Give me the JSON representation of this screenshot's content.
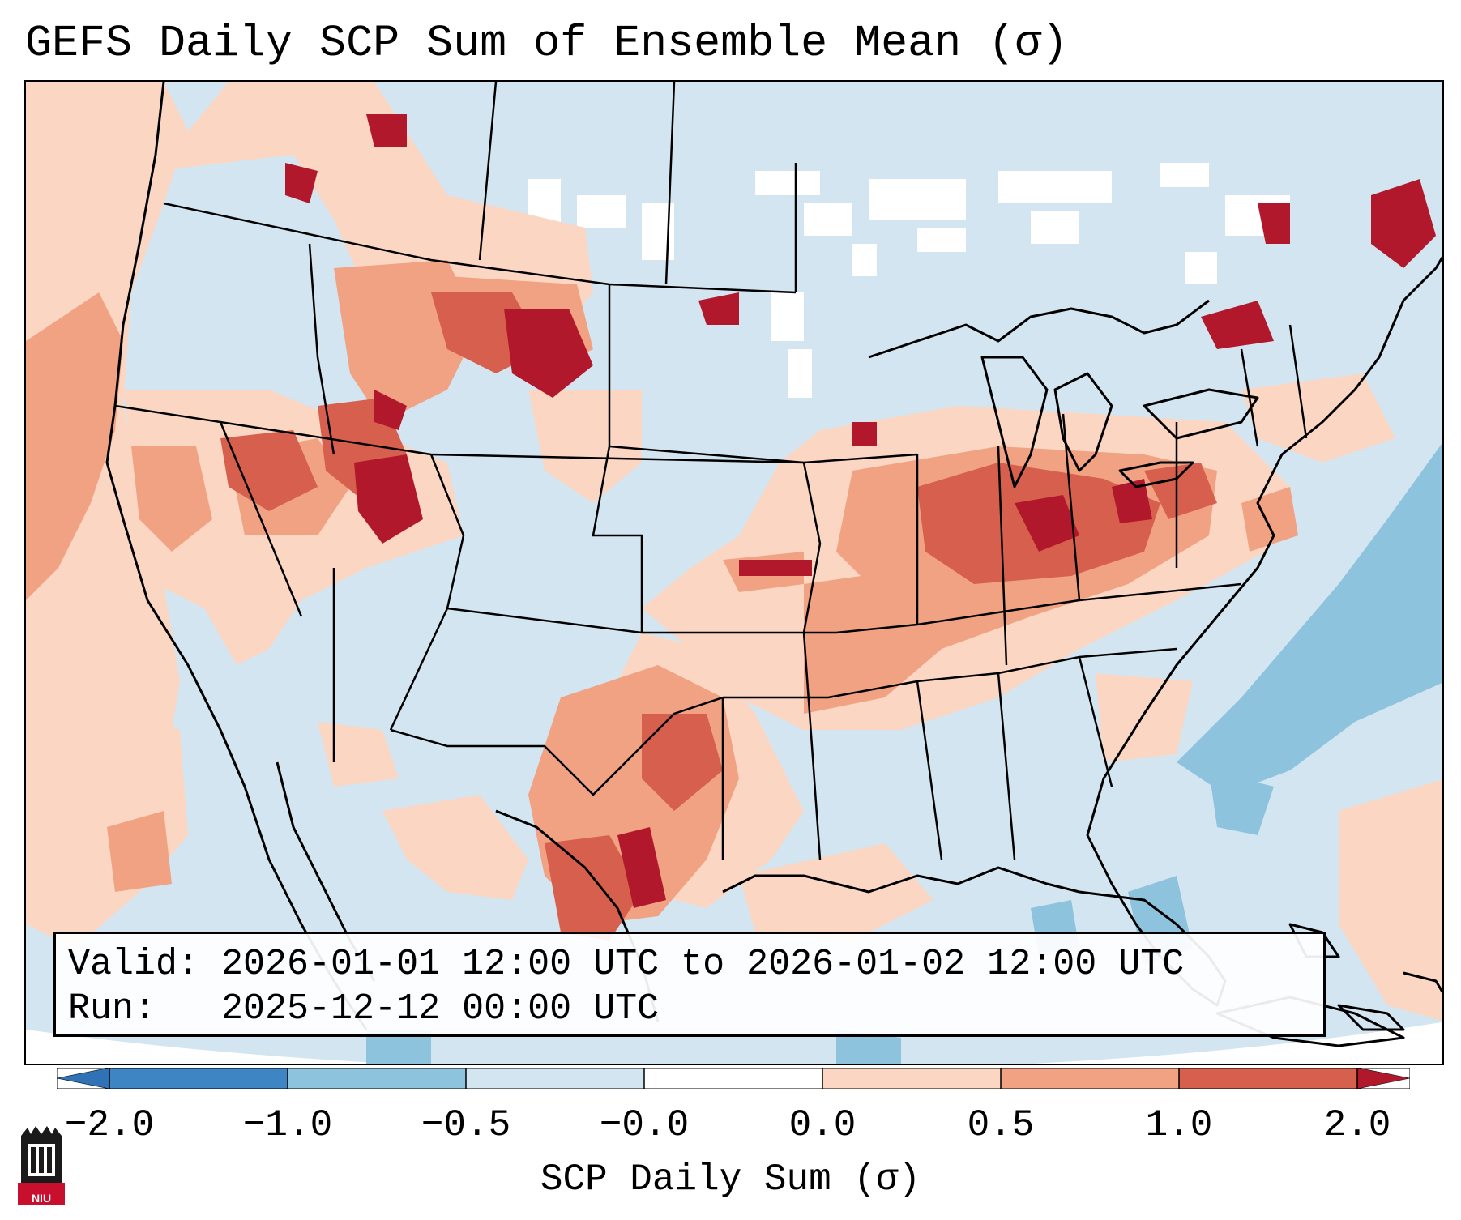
{
  "title": "GEFS Daily SCP Sum of Ensemble Mean (σ)",
  "info": {
    "valid_line": "Valid: 2026-01-01 12:00 UTC to 2026-01-02 12:00 UTC",
    "run_line": "Run:   2025-12-12 00:00 UTC"
  },
  "colorbar": {
    "label": "SCP Daily Sum (σ)",
    "ticks": [
      "−2.0",
      "−1.0",
      "−0.5",
      "−0.0",
      "0.0",
      "0.5",
      "1.0",
      "2.0"
    ],
    "bins": [
      {
        "range": "< -2.0",
        "color": "#2f72b5"
      },
      {
        "range": "-2.0 to -1.0",
        "color": "#3e85c4"
      },
      {
        "range": "-1.0 to -0.5",
        "color": "#8ec3de"
      },
      {
        "range": "-0.5 to -0.0",
        "color": "#d2e5f0"
      },
      {
        "range": "-0.0 to 0.0",
        "color": "#ffffff"
      },
      {
        "range": "0.0 to 0.5",
        "color": "#fbd7c3"
      },
      {
        "range": "0.5 to 1.0",
        "color": "#f0a283"
      },
      {
        "range": "1.0 to 2.0",
        "color": "#d6604d"
      },
      {
        "range": "> 2.0",
        "color": "#b2182b"
      }
    ]
  },
  "map_colors": {
    "background": "#d2e5f0",
    "weak_positive": "#fbd7c3",
    "moderate_positive": "#f0a283",
    "strong_positive": "#d6604d",
    "extreme_positive": "#b2182b",
    "weak_negative": "#8ec3de",
    "missing": "#ffffff"
  },
  "logo": {
    "text": "NIU",
    "icon": "niu-logo-icon"
  }
}
